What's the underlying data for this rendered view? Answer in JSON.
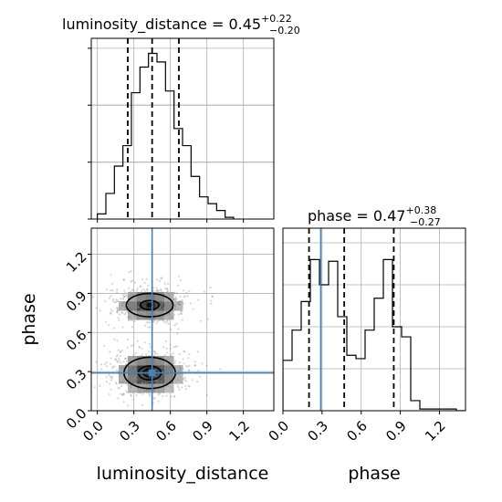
{
  "chart_data": [
    {
      "type": "histogram",
      "panel": "top-left",
      "param": "luminosity_distance",
      "title": {
        "label": "luminosity_distance = 0.45",
        "upper": "+0.22",
        "lower": "−0.20"
      },
      "median": 0.45,
      "quantiles": [
        0.25,
        0.45,
        0.67
      ],
      "xlim": [
        -0.05,
        1.45
      ],
      "x_edges": [
        0.0,
        0.07,
        0.14,
        0.21,
        0.28,
        0.35,
        0.42,
        0.49,
        0.56,
        0.63,
        0.7,
        0.77,
        0.84,
        0.91,
        0.98,
        1.05,
        1.12
      ],
      "values": [
        0.03,
        0.15,
        0.31,
        0.43,
        0.74,
        0.89,
        0.97,
        0.92,
        0.75,
        0.53,
        0.43,
        0.25,
        0.13,
        0.09,
        0.05,
        0.01
      ],
      "grid": true
    },
    {
      "type": "histogram",
      "panel": "bottom-right",
      "param": "phase",
      "title": {
        "label": "phase = 0.47",
        "upper": "+0.38",
        "lower": "−0.27"
      },
      "xlim": [
        0.0,
        1.4
      ],
      "xticks": [
        "0.0",
        "0.3",
        "0.6",
        "0.9",
        "1.2"
      ],
      "xlabel": "phase",
      "truth": 0.29,
      "quantiles": [
        0.2,
        0.47,
        0.85
      ],
      "x_edges": [
        0.0,
        0.07,
        0.14,
        0.21,
        0.28,
        0.35,
        0.42,
        0.49,
        0.56,
        0.63,
        0.7,
        0.77,
        0.84,
        0.91,
        0.98,
        1.05,
        1.12,
        1.19,
        1.26,
        1.33,
        1.4
      ],
      "values": [
        0.3,
        0.48,
        0.65,
        0.9,
        0.75,
        0.89,
        0.56,
        0.33,
        0.31,
        0.48,
        0.67,
        0.9,
        0.5,
        0.44,
        0.06,
        0.01,
        0.01,
        0.01,
        0.01,
        0.0
      ],
      "grid": true
    },
    {
      "type": "contour-scatter",
      "panel": "bottom-left",
      "x_param": "luminosity_distance",
      "y_param": "phase",
      "xlim": [
        -0.05,
        1.45
      ],
      "ylim": [
        0.0,
        1.4
      ],
      "xticks": [
        "0.0",
        "0.3",
        "0.6",
        "0.9",
        "1.2"
      ],
      "yticks": [
        "0.0",
        "0.3",
        "0.6",
        "0.9",
        "1.2"
      ],
      "xlabel": "luminosity_distance",
      "ylabel": "phase",
      "truth": {
        "x": 0.45,
        "y": 0.29
      },
      "modes": [
        {
          "x": 0.43,
          "y": 0.81,
          "sx": 0.14,
          "sy": 0.065,
          "weight": 1.0
        },
        {
          "x": 0.43,
          "y": 0.29,
          "sx": 0.15,
          "sy": 0.085,
          "weight": 1.05
        }
      ],
      "contour_levels": [
        0.39,
        0.86,
        0.99
      ],
      "grid": true
    }
  ],
  "colors": {
    "truth": "#4682b4",
    "line": "#000000",
    "grid": "#b0b0b0",
    "scatter": "#8a8a8a"
  }
}
